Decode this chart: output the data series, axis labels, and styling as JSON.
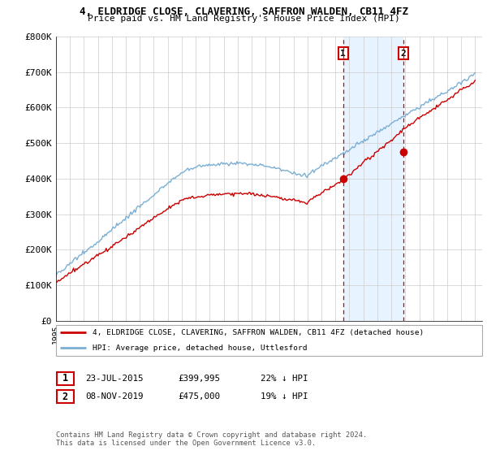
{
  "title_line1": "4, ELDRIDGE CLOSE, CLAVERING, SAFFRON WALDEN, CB11 4FZ",
  "title_line2": "Price paid vs. HM Land Registry's House Price Index (HPI)",
  "ylim": [
    0,
    800000
  ],
  "yticks": [
    0,
    100000,
    200000,
    300000,
    400000,
    500000,
    600000,
    700000,
    800000
  ],
  "ytick_labels": [
    "£0",
    "£100K",
    "£200K",
    "£300K",
    "£400K",
    "£500K",
    "£600K",
    "£700K",
    "£800K"
  ],
  "hpi_color": "#7bafd4",
  "price_color": "#cc0000",
  "vline_color": "#cc0000",
  "shade_color": "#ddeeff",
  "transaction1_date": 2015.55,
  "transaction1_price": 399995,
  "transaction2_date": 2019.85,
  "transaction2_price": 475000,
  "legend_house_label": "4, ELDRIDGE CLOSE, CLAVERING, SAFFRON WALDEN, CB11 4FZ (detached house)",
  "legend_hpi_label": "HPI: Average price, detached house, Uttlesford",
  "table_row1": [
    "1",
    "23-JUL-2015",
    "£399,995",
    "22% ↓ HPI"
  ],
  "table_row2": [
    "2",
    "08-NOV-2019",
    "£475,000",
    "19% ↓ HPI"
  ],
  "footer": "Contains HM Land Registry data © Crown copyright and database right 2024.\nThis data is licensed under the Open Government Licence v3.0.",
  "background_color": "#ffffff",
  "grid_color": "#cccccc"
}
